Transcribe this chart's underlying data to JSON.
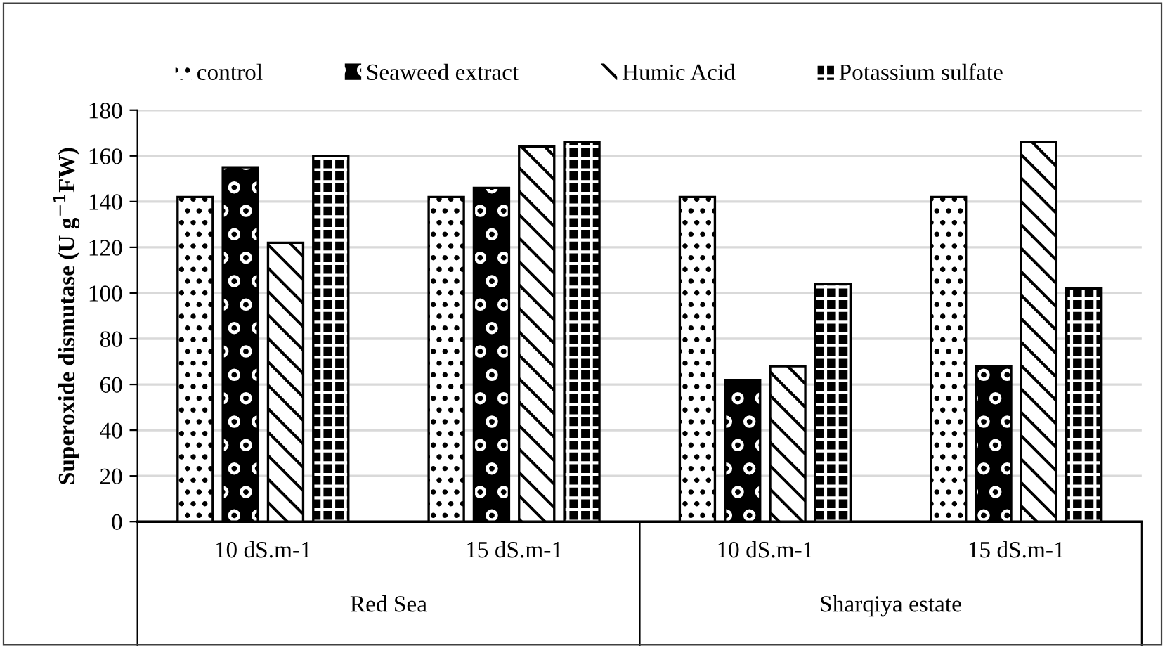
{
  "chart_data": {
    "type": "bar",
    "ylabel": "Superoxide dismutase (U g$^{−1}$FW)",
    "categories": [
      "10 dS.m-1",
      "15 dS.m-1",
      "10 dS.m-1",
      "15 dS.m-1"
    ],
    "annotations": [
      "Red Sea",
      "Sharqiya estate"
    ],
    "series": [
      {
        "name": "control",
        "color": "#ffffff",
        "values": [
          142,
          142,
          142,
          142
        ]
      },
      {
        "name": "Seaweed extract",
        "color": "#000000",
        "values": [
          155,
          146,
          62,
          68
        ]
      },
      {
        "name": "Humic Acid",
        "color": "#ffffff",
        "values": [
          122,
          164,
          68,
          166
        ]
      },
      {
        "name": "Potassium sulfate",
        "color": "#000000",
        "values": [
          160,
          166,
          104,
          102
        ]
      }
    ],
    "ylim": [
      0,
      180
    ],
    "yticks": [
      0,
      20,
      40,
      60,
      80,
      100,
      120,
      140,
      160,
      180
    ],
    "grid": "y",
    "legend": "top"
  }
}
